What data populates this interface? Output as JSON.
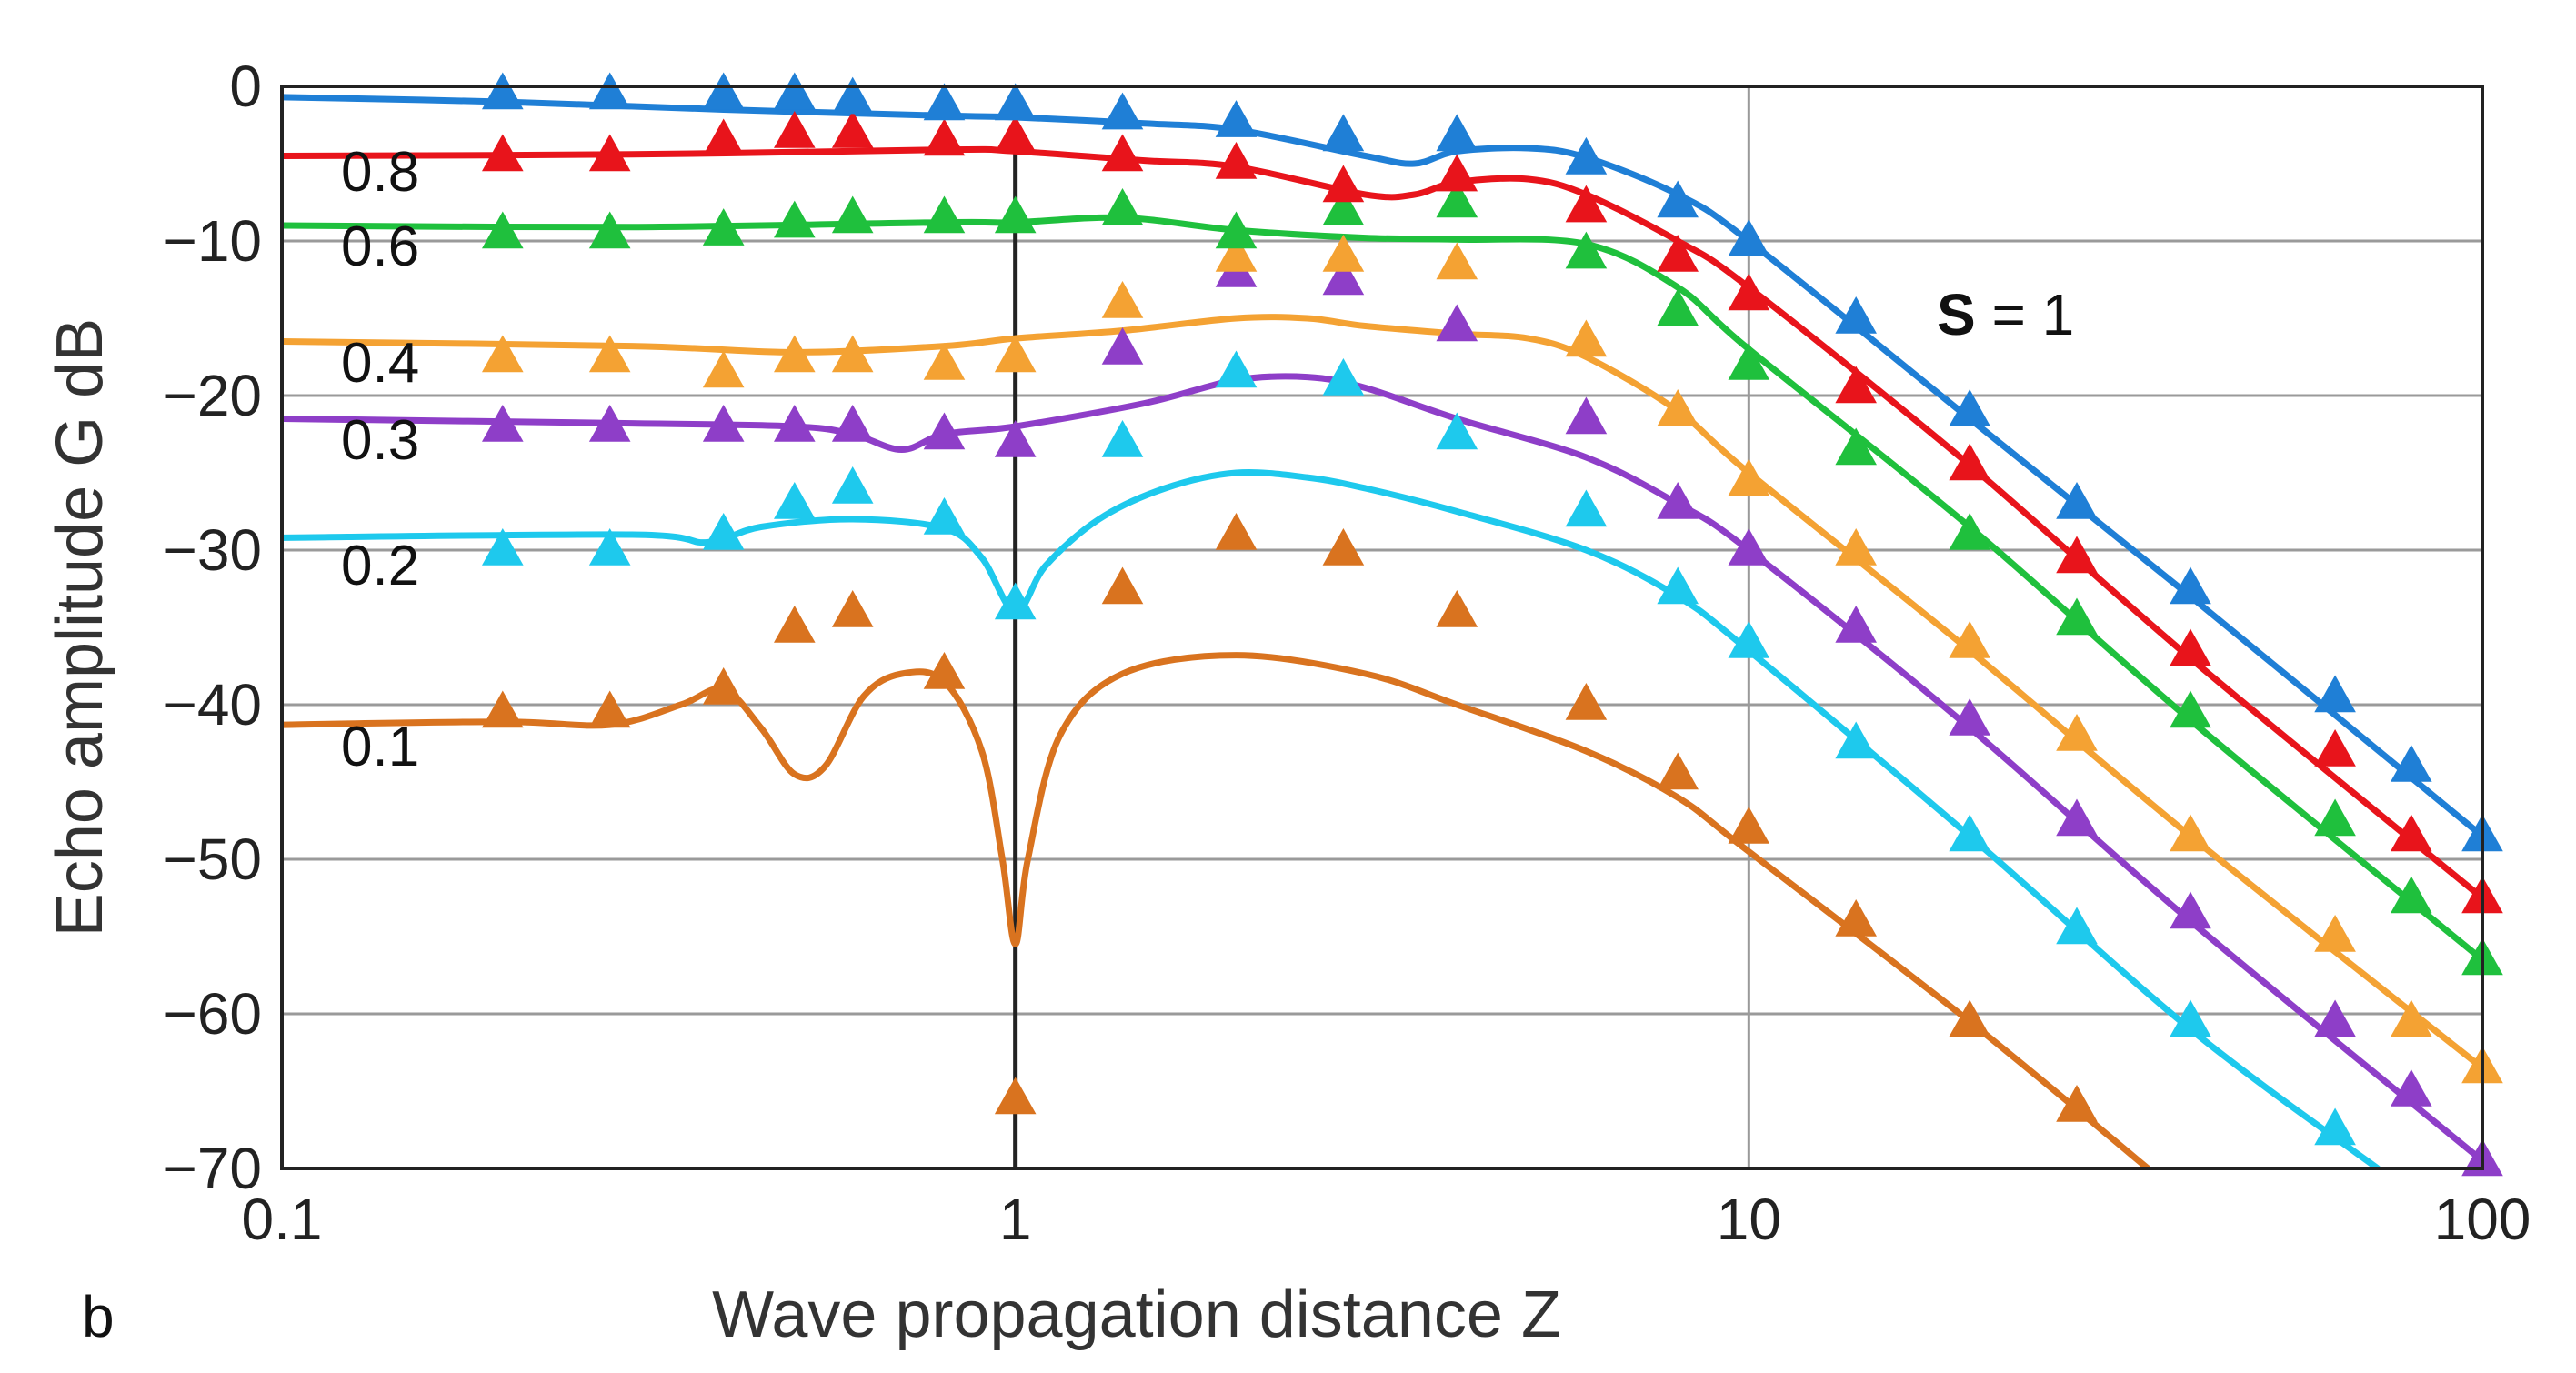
{
  "chart_data": {
    "type": "line",
    "title": "",
    "panel_label": "b",
    "xlabel": "Wave propagation distance  Z",
    "ylabel": "Echo amplitude  G  dB",
    "xscale": "log",
    "xlim": [
      0.1,
      100
    ],
    "ylim": [
      -70,
      0
    ],
    "x_ticks": [
      {
        "value": 0.1,
        "label": "0.1"
      },
      {
        "value": 1,
        "label": "1"
      },
      {
        "value": 10,
        "label": "10"
      },
      {
        "value": 100,
        "label": "100"
      }
    ],
    "y_ticks": [
      {
        "value": 0,
        "label": "0"
      },
      {
        "value": -10,
        "label": "−10"
      },
      {
        "value": -20,
        "label": "−20"
      },
      {
        "value": -30,
        "label": "−30"
      },
      {
        "value": -40,
        "label": "−40"
      },
      {
        "value": -50,
        "label": "−50"
      },
      {
        "value": -60,
        "label": "−60"
      },
      {
        "value": -70,
        "label": "−70"
      }
    ],
    "grid": true,
    "annotation": {
      "bold": "S",
      "rest": " = 1"
    },
    "series": [
      {
        "name": "S = 1",
        "label": "",
        "color": "#1f7fd6",
        "curve": [
          [
            0.1,
            -0.7
          ],
          [
            0.2,
            -1.0
          ],
          [
            0.4,
            -1.5
          ],
          [
            0.8,
            -1.9
          ],
          [
            1,
            -2.0
          ],
          [
            1.5,
            -2.4
          ],
          [
            2,
            -2.8
          ],
          [
            3,
            -4.5
          ],
          [
            3.5,
            -5.0
          ],
          [
            4,
            -4.2
          ],
          [
            5,
            -4.0
          ],
          [
            6,
            -4.6
          ],
          [
            8,
            -7
          ],
          [
            10,
            -10
          ],
          [
            20,
            -21.5
          ],
          [
            40,
            -33
          ],
          [
            100,
            -48.5
          ]
        ],
        "points": [
          [
            0.2,
            -0.5
          ],
          [
            0.28,
            -0.5
          ],
          [
            0.4,
            -0.5
          ],
          [
            0.5,
            -0.5
          ],
          [
            0.6,
            -0.8
          ],
          [
            0.8,
            -1.2
          ],
          [
            1,
            -1.2
          ],
          [
            1.4,
            -1.8
          ],
          [
            2,
            -2.3
          ],
          [
            2.8,
            -3.2
          ],
          [
            4,
            -3.2
          ],
          [
            6,
            -4.7
          ],
          [
            8,
            -7.5
          ],
          [
            10,
            -10
          ],
          [
            14,
            -15
          ],
          [
            20,
            -21
          ],
          [
            28,
            -27
          ],
          [
            40,
            -32.5
          ],
          [
            63,
            -39.5
          ],
          [
            80,
            -44
          ],
          [
            100,
            -48.5
          ]
        ]
      },
      {
        "name": "0.8",
        "label": "0.8",
        "color": "#e8141b",
        "curve": [
          [
            0.1,
            -4.5
          ],
          [
            0.3,
            -4.4
          ],
          [
            0.8,
            -4.1
          ],
          [
            1,
            -4.2
          ],
          [
            1.5,
            -4.8
          ],
          [
            2,
            -5.2
          ],
          [
            3,
            -7.0
          ],
          [
            3.5,
            -7.0
          ],
          [
            4,
            -6.2
          ],
          [
            5,
            -6.0
          ],
          [
            6,
            -7.0
          ],
          [
            8,
            -10
          ],
          [
            10,
            -13
          ],
          [
            20,
            -24.5
          ],
          [
            40,
            -37
          ],
          [
            100,
            -52.5
          ]
        ],
        "points": [
          [
            0.2,
            -4.5
          ],
          [
            0.28,
            -4.5
          ],
          [
            0.4,
            -3.5
          ],
          [
            0.5,
            -3
          ],
          [
            0.6,
            -3
          ],
          [
            0.8,
            -3.5
          ],
          [
            1,
            -3.3
          ],
          [
            1.4,
            -4.5
          ],
          [
            2,
            -5
          ],
          [
            2.8,
            -6.5
          ],
          [
            4,
            -5.8
          ],
          [
            6,
            -7.8
          ],
          [
            8,
            -11
          ],
          [
            10,
            -13.5
          ],
          [
            14,
            -19.5
          ],
          [
            20,
            -24.5
          ],
          [
            28,
            -30.5
          ],
          [
            40,
            -36.5
          ],
          [
            63,
            -43
          ],
          [
            80,
            -48.5
          ],
          [
            100,
            -52.5
          ]
        ]
      },
      {
        "name": "0.6",
        "label": "0.6",
        "color": "#1fc03d",
        "curve": [
          [
            0.1,
            -9
          ],
          [
            0.3,
            -9.1
          ],
          [
            0.8,
            -8.8
          ],
          [
            1,
            -8.8
          ],
          [
            1.4,
            -8.5
          ],
          [
            2,
            -9.3
          ],
          [
            3,
            -9.8
          ],
          [
            4,
            -9.9
          ],
          [
            6,
            -10.2
          ],
          [
            8,
            -13
          ],
          [
            10,
            -17
          ],
          [
            20,
            -28.5
          ],
          [
            40,
            -41
          ],
          [
            100,
            -56.5
          ]
        ],
        "points": [
          [
            0.2,
            -9.5
          ],
          [
            0.28,
            -9.5
          ],
          [
            0.4,
            -9.3
          ],
          [
            0.5,
            -8.8
          ],
          [
            0.6,
            -8.5
          ],
          [
            0.8,
            -8.5
          ],
          [
            1,
            -8.5
          ],
          [
            1.4,
            -8
          ],
          [
            2,
            -9.5
          ],
          [
            2.8,
            -8
          ],
          [
            4,
            -7.5
          ],
          [
            6,
            -10.8
          ],
          [
            8,
            -14.5
          ],
          [
            10,
            -18
          ],
          [
            14,
            -23.5
          ],
          [
            20,
            -29
          ],
          [
            28,
            -34.5
          ],
          [
            40,
            -40.5
          ],
          [
            63,
            -47.5
          ],
          [
            80,
            -52.5
          ],
          [
            100,
            -56.5
          ]
        ]
      },
      {
        "name": "0.4",
        "label": "0.4",
        "color": "#f4a233",
        "curve": [
          [
            0.1,
            -16.5
          ],
          [
            0.3,
            -16.8
          ],
          [
            0.5,
            -17.2
          ],
          [
            0.8,
            -16.8
          ],
          [
            1,
            -16.3
          ],
          [
            1.4,
            -15.8
          ],
          [
            2,
            -15.0
          ],
          [
            2.5,
            -15.0
          ],
          [
            3,
            -15.5
          ],
          [
            4,
            -16
          ],
          [
            5,
            -16.3
          ],
          [
            6,
            -17.5
          ],
          [
            8,
            -21
          ],
          [
            10,
            -25
          ],
          [
            20,
            -36.5
          ],
          [
            40,
            -48.5
          ],
          [
            100,
            -63.5
          ]
        ],
        "points": [
          [
            0.2,
            -17.5
          ],
          [
            0.28,
            -17.5
          ],
          [
            0.4,
            -18.5
          ],
          [
            0.5,
            -17.5
          ],
          [
            0.6,
            -17.5
          ],
          [
            0.8,
            -18
          ],
          [
            1,
            -17.5
          ],
          [
            1.4,
            -14
          ],
          [
            2,
            -11
          ],
          [
            2.8,
            -11
          ],
          [
            4,
            -11.5
          ],
          [
            6,
            -16.5
          ],
          [
            8,
            -21
          ],
          [
            10,
            -25.5
          ],
          [
            14,
            -30
          ],
          [
            20,
            -36
          ],
          [
            28,
            -42
          ],
          [
            40,
            -48.5
          ],
          [
            63,
            -55
          ],
          [
            80,
            -60.5
          ],
          [
            100,
            -63.5
          ]
        ]
      },
      {
        "name": "0.3",
        "label": "0.3",
        "color": "#8e3ec8",
        "curve": [
          [
            0.1,
            -21.5
          ],
          [
            0.3,
            -21.8
          ],
          [
            0.5,
            -22
          ],
          [
            0.6,
            -22.5
          ],
          [
            0.7,
            -23.5
          ],
          [
            0.8,
            -22.5
          ],
          [
            1,
            -22
          ],
          [
            1.5,
            -20.5
          ],
          [
            2,
            -19
          ],
          [
            2.5,
            -18.8
          ],
          [
            3,
            -19.5
          ],
          [
            4,
            -21.5
          ],
          [
            6,
            -24
          ],
          [
            8,
            -27
          ],
          [
            10,
            -30
          ],
          [
            20,
            -41.5
          ],
          [
            40,
            -54
          ],
          [
            100,
            -69.5
          ]
        ],
        "points": [
          [
            0.2,
            -22
          ],
          [
            0.28,
            -22
          ],
          [
            0.4,
            -22
          ],
          [
            0.5,
            -22
          ],
          [
            0.6,
            -22
          ],
          [
            0.8,
            -22.5
          ],
          [
            1,
            -23
          ],
          [
            1.4,
            -17
          ],
          [
            2,
            -12
          ],
          [
            2.8,
            -12.5
          ],
          [
            4,
            -15.5
          ],
          [
            6,
            -21.5
          ],
          [
            8,
            -27
          ],
          [
            10,
            -30
          ],
          [
            14,
            -35
          ],
          [
            20,
            -41
          ],
          [
            28,
            -47.5
          ],
          [
            40,
            -53.5
          ],
          [
            63,
            -60.5
          ],
          [
            80,
            -65
          ],
          [
            100,
            -69.5
          ]
        ]
      },
      {
        "name": "0.2",
        "label": "0.2",
        "color": "#1ec9ed",
        "curve": [
          [
            0.1,
            -29.2
          ],
          [
            0.3,
            -29
          ],
          [
            0.38,
            -29.5
          ],
          [
            0.45,
            -28.5
          ],
          [
            0.6,
            -28
          ],
          [
            0.8,
            -28.6
          ],
          [
            0.9,
            -30.5
          ],
          [
            1,
            -34
          ],
          [
            1.1,
            -31
          ],
          [
            1.3,
            -28
          ],
          [
            1.6,
            -26
          ],
          [
            2,
            -25
          ],
          [
            2.5,
            -25.3
          ],
          [
            3,
            -26
          ],
          [
            4,
            -27.5
          ],
          [
            6,
            -30
          ],
          [
            8,
            -33
          ],
          [
            10,
            -36.5
          ],
          [
            20,
            -48.5
          ],
          [
            40,
            -61
          ],
          [
            72,
            -70
          ]
        ],
        "points": [
          [
            0.2,
            -30
          ],
          [
            0.28,
            -30
          ],
          [
            0.4,
            -29
          ],
          [
            0.5,
            -27
          ],
          [
            0.6,
            -26
          ],
          [
            0.8,
            -28
          ],
          [
            1,
            -33.5
          ],
          [
            1.4,
            -23
          ],
          [
            2,
            -18.5
          ],
          [
            2.8,
            -19
          ],
          [
            4,
            -22.5
          ],
          [
            6,
            -27.5
          ],
          [
            8,
            -32.5
          ],
          [
            10,
            -36
          ],
          [
            14,
            -42.5
          ],
          [
            20,
            -48.5
          ],
          [
            28,
            -54.5
          ],
          [
            40,
            -60.5
          ],
          [
            63,
            -67.5
          ]
        ]
      },
      {
        "name": "0.1",
        "label": "0.1",
        "color": "#d9731f",
        "curve": [
          [
            0.1,
            -41.3
          ],
          [
            0.2,
            -41.1
          ],
          [
            0.28,
            -41.3
          ],
          [
            0.35,
            -40
          ],
          [
            0.4,
            -39
          ],
          [
            0.45,
            -41.5
          ],
          [
            0.5,
            -44.5
          ],
          [
            0.55,
            -44
          ],
          [
            0.62,
            -39.5
          ],
          [
            0.7,
            -38
          ],
          [
            0.8,
            -38.5
          ],
          [
            0.9,
            -43
          ],
          [
            0.96,
            -50
          ],
          [
            1,
            -55.5
          ],
          [
            1.04,
            -50
          ],
          [
            1.15,
            -42
          ],
          [
            1.4,
            -38
          ],
          [
            2,
            -36.8
          ],
          [
            3,
            -38
          ],
          [
            4,
            -40
          ],
          [
            6,
            -43
          ],
          [
            8,
            -46
          ],
          [
            10,
            -49.5
          ],
          [
            20,
            -60.5
          ],
          [
            35,
            -70
          ]
        ],
        "points": [
          [
            0.2,
            -40.5
          ],
          [
            0.28,
            -40.5
          ],
          [
            0.4,
            -39
          ],
          [
            0.5,
            -35
          ],
          [
            0.6,
            -34
          ],
          [
            0.8,
            -38
          ],
          [
            1,
            -65.5
          ],
          [
            1.4,
            -32.5
          ],
          [
            2,
            -29
          ],
          [
            2.8,
            -30
          ],
          [
            4,
            -34
          ],
          [
            6,
            -40
          ],
          [
            8,
            -44.5
          ],
          [
            10,
            -48
          ],
          [
            14,
            -54
          ],
          [
            20,
            -60.5
          ],
          [
            28,
            -66
          ]
        ]
      }
    ]
  }
}
